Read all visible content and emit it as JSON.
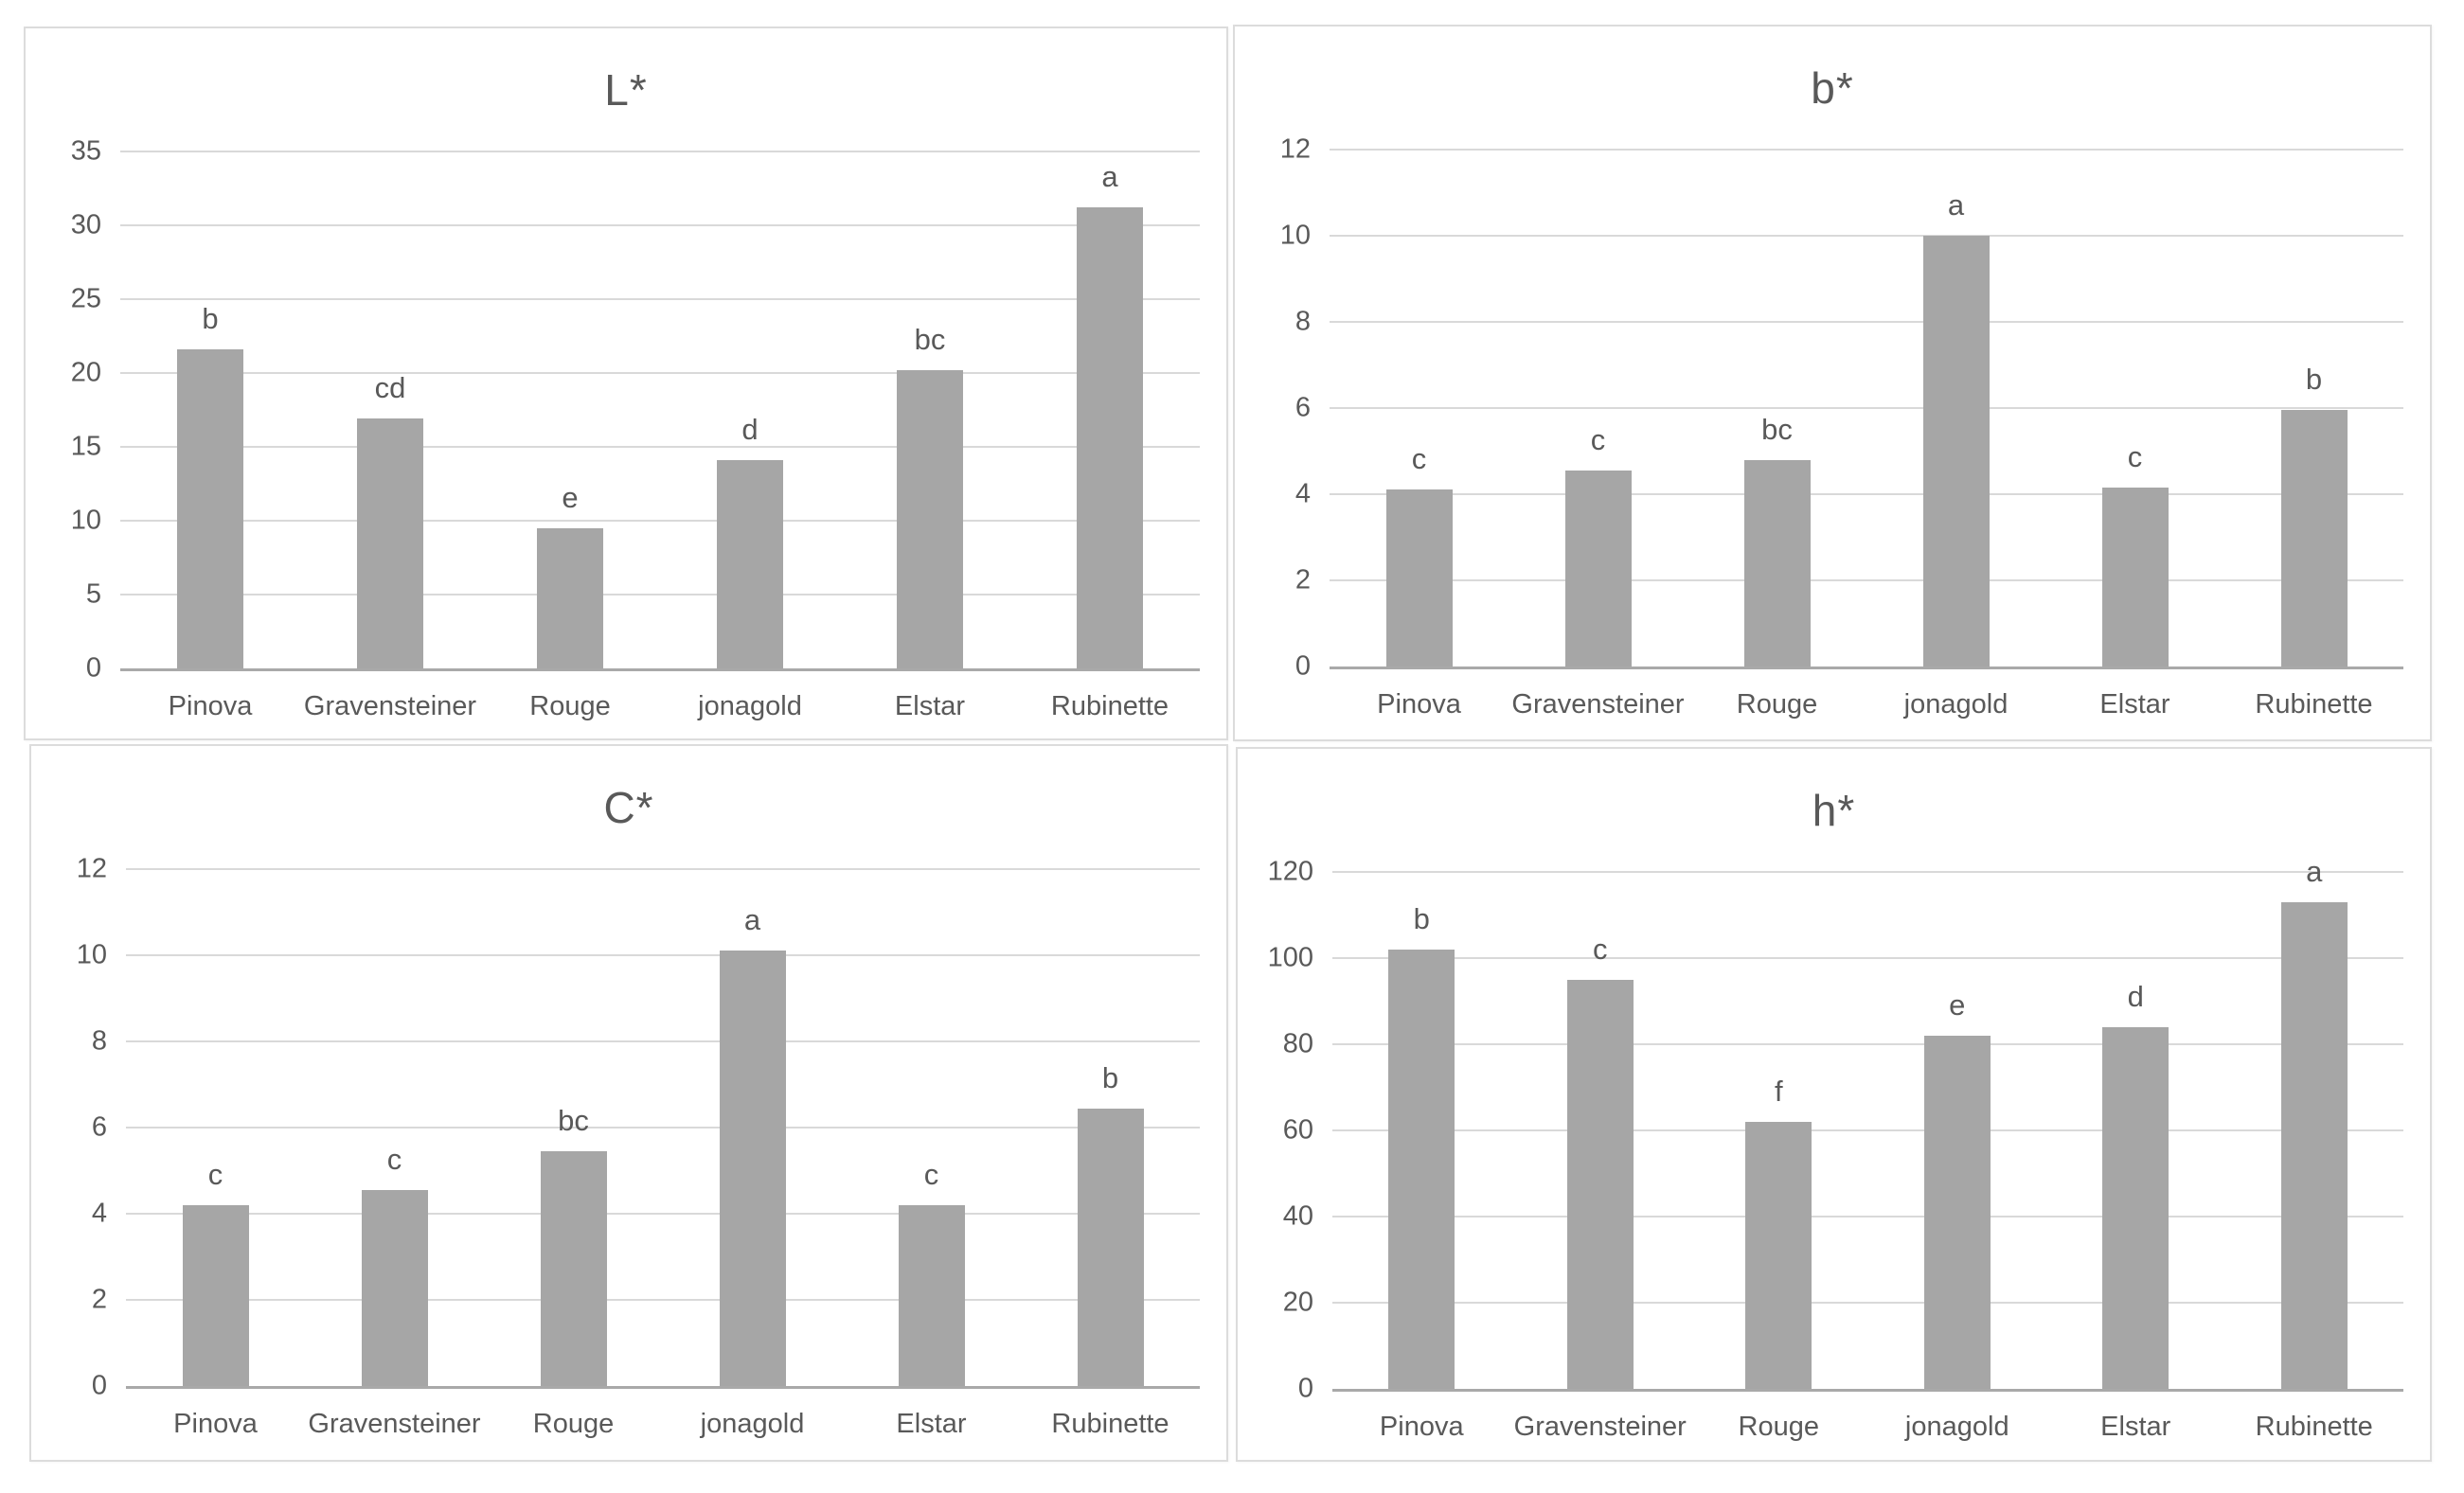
{
  "colors": {
    "bar": "#a6a6a6",
    "gridline": "#d9d9d9",
    "axis_line": "#a9a9a9",
    "text": "#595959",
    "panel_border": "#dcdcdc",
    "background": "#ffffff"
  },
  "chart_data": [
    {
      "type": "bar",
      "title": "L*",
      "categories": [
        "Pinova",
        "Gravensteiner",
        "Rouge",
        "jonagold",
        "Elstar",
        "Rubinette"
      ],
      "values": [
        21.6,
        16.9,
        9.5,
        14.1,
        20.2,
        31.2
      ],
      "sig_letters": [
        "b",
        "cd",
        "e",
        "d",
        "bc",
        "a"
      ],
      "xlabel": "",
      "ylabel": "",
      "ylim": [
        0,
        35
      ],
      "yticks": [
        0,
        5,
        10,
        15,
        20,
        25,
        30,
        35
      ],
      "grid": true,
      "legend": false,
      "bar_color": "#a6a6a6"
    },
    {
      "type": "bar",
      "title": "b*",
      "categories": [
        "Pinova",
        "Gravensteiner",
        "Rouge",
        "jonagold",
        "Elstar",
        "Rubinette"
      ],
      "values": [
        4.1,
        4.55,
        4.8,
        10.0,
        4.15,
        5.95
      ],
      "sig_letters": [
        "c",
        "c",
        "bc",
        "a",
        "c",
        "b"
      ],
      "xlabel": "",
      "ylabel": "",
      "ylim": [
        0,
        12
      ],
      "yticks": [
        0,
        2,
        4,
        6,
        8,
        10,
        12
      ],
      "grid": true,
      "legend": false,
      "bar_color": "#a6a6a6"
    },
    {
      "type": "bar",
      "title": "C*",
      "categories": [
        "Pinova",
        "Gravensteiner",
        "Rouge",
        "jonagold",
        "Elstar",
        "Rubinette"
      ],
      "values": [
        4.2,
        4.55,
        5.45,
        10.1,
        4.2,
        6.45
      ],
      "sig_letters": [
        "c",
        "c",
        "bc",
        "a",
        "c",
        "b"
      ],
      "xlabel": "",
      "ylabel": "",
      "ylim": [
        0,
        12
      ],
      "yticks": [
        0,
        2,
        4,
        6,
        8,
        10,
        12
      ],
      "grid": true,
      "legend": false,
      "bar_color": "#a6a6a6"
    },
    {
      "type": "bar",
      "title": "h*",
      "categories": [
        "Pinova",
        "Gravensteiner",
        "Rouge",
        "jonagold",
        "Elstar",
        "Rubinette"
      ],
      "values": [
        102,
        95,
        62,
        82,
        84,
        113
      ],
      "sig_letters": [
        "b",
        "c",
        "f",
        "e",
        "d",
        "a"
      ],
      "xlabel": "",
      "ylabel": "",
      "ylim": [
        0,
        120
      ],
      "yticks": [
        0,
        20,
        40,
        60,
        80,
        100,
        120
      ],
      "grid": true,
      "legend": false,
      "bar_color": "#a6a6a6"
    }
  ]
}
